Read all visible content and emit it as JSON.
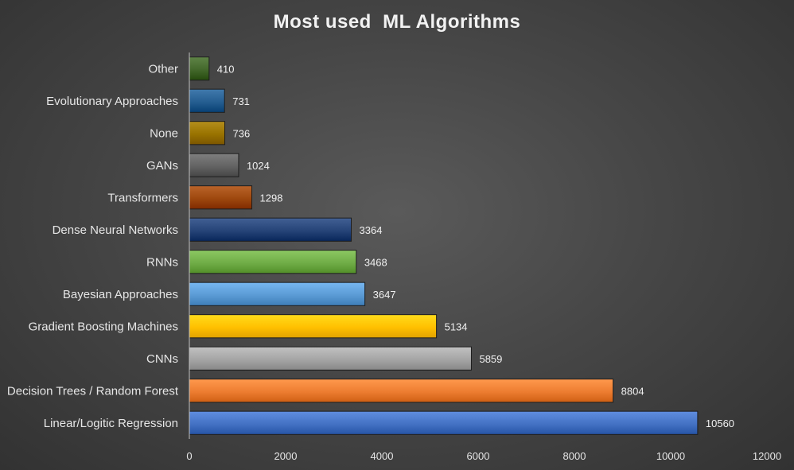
{
  "chart_data": {
    "type": "bar",
    "orientation": "horizontal",
    "title": "Most used  ML Algorithms",
    "xlabel": "",
    "ylabel": "",
    "xlim": [
      0,
      12000
    ],
    "x_ticks": [
      "0",
      "2000",
      "4000",
      "6000",
      "8000",
      "10000",
      "12000"
    ],
    "grid": false,
    "legend": "none",
    "categories": [
      "Linear/Logitic Regression",
      "Decision Trees / Random Forest",
      "CNNs",
      "Gradient Boosting Machines",
      "Bayesian Approaches",
      "RNNs",
      "Dense Neural Networks",
      "Transformers",
      "GANs",
      "None",
      "Evolutionary Approaches",
      "Other"
    ],
    "values": [
      10560,
      8804,
      5859,
      5134,
      3647,
      3468,
      3364,
      1298,
      1024,
      736,
      731,
      410
    ],
    "colors": [
      "#4472c4",
      "#ed7d31",
      "#a5a5a5",
      "#ffc000",
      "#5b9bd5",
      "#70ad47",
      "#264478",
      "#9e480e",
      "#636363",
      "#997300",
      "#255e91",
      "#43682b"
    ]
  }
}
